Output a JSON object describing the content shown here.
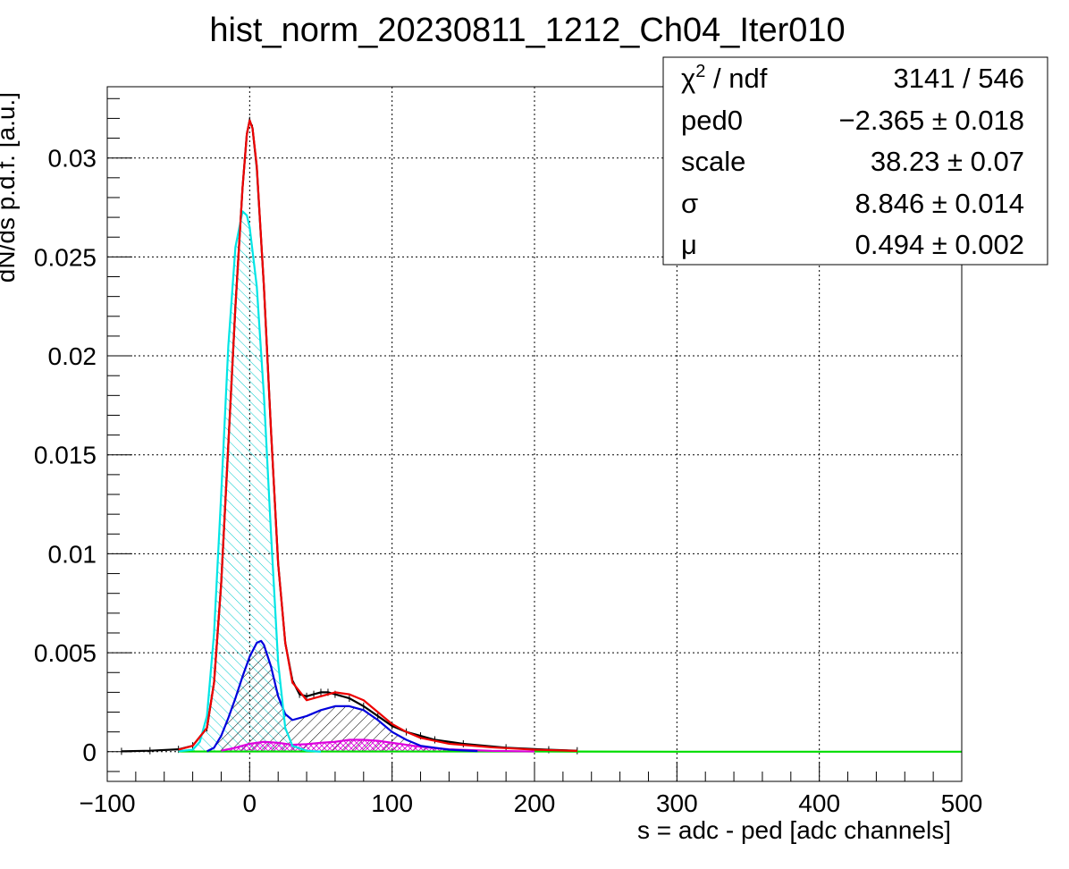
{
  "chart_data": {
    "type": "line",
    "title": "hist_norm_20230811_1212_Ch04_Iter010",
    "xlabel": "s = adc - ped [adc channels]",
    "ylabel": "dN/ds p.d.f. [a.u.]",
    "xlim": [
      -100,
      500
    ],
    "ylim": [
      -0.0015,
      0.0336
    ],
    "grid": true,
    "x_ticks": [
      {
        "value": -100,
        "label": "−100"
      },
      {
        "value": 0,
        "label": "0"
      },
      {
        "value": 100,
        "label": "100"
      },
      {
        "value": 200,
        "label": "200"
      },
      {
        "value": 300,
        "label": "300"
      },
      {
        "value": 400,
        "label": "400"
      },
      {
        "value": 500,
        "label": "500"
      }
    ],
    "y_ticks": [
      {
        "value": 0,
        "label": "0"
      },
      {
        "value": 0.005,
        "label": "0.005"
      },
      {
        "value": 0.01,
        "label": "0.01"
      },
      {
        "value": 0.015,
        "label": "0.015"
      },
      {
        "value": 0.02,
        "label": "0.02"
      },
      {
        "value": 0.025,
        "label": "0.025"
      },
      {
        "value": 0.03,
        "label": "0.03"
      }
    ],
    "stats_box": {
      "position": "top-right",
      "rows": [
        {
          "key": "chi2",
          "label_main": "χ",
          "label_sup": "2",
          "label_rest": " / ndf",
          "value": "3141 / 546"
        },
        {
          "key": "ped0",
          "label_main": "ped0",
          "value": "−2.365 ± 0.018"
        },
        {
          "key": "scale",
          "label_main": "scale",
          "value": "38.23 ± 0.07"
        },
        {
          "key": "sigma",
          "label_main": "σ",
          "value": "8.846 ± 0.014"
        },
        {
          "key": "mu",
          "label_main": "μ",
          "value": "0.494 ± 0.002"
        }
      ]
    },
    "series": [
      {
        "key": "data",
        "color": "#000000",
        "points": [
          [
            -90,
            2e-05
          ],
          [
            -70,
            5e-05
          ],
          [
            -50,
            0.00012
          ],
          [
            -40,
            0.0003
          ],
          [
            -30,
            0.0012
          ],
          [
            -25,
            0.0035
          ],
          [
            -20,
            0.0085
          ],
          [
            -15,
            0.0155
          ],
          [
            -10,
            0.0225
          ],
          [
            -5,
            0.0285
          ],
          [
            -2,
            0.0312
          ],
          [
            0,
            0.0319
          ],
          [
            2,
            0.0315
          ],
          [
            5,
            0.0295
          ],
          [
            10,
            0.0235
          ],
          [
            15,
            0.0162
          ],
          [
            20,
            0.0095
          ],
          [
            25,
            0.0055
          ],
          [
            30,
            0.0036
          ],
          [
            35,
            0.0029
          ],
          [
            40,
            0.0028
          ],
          [
            45,
            0.0029
          ],
          [
            50,
            0.003
          ],
          [
            55,
            0.003
          ],
          [
            60,
            0.0029
          ],
          [
            70,
            0.0027
          ],
          [
            80,
            0.0023
          ],
          [
            90,
            0.0018
          ],
          [
            100,
            0.0013
          ],
          [
            110,
            0.001
          ],
          [
            120,
            0.0008
          ],
          [
            130,
            0.0006
          ],
          [
            150,
            0.0004
          ],
          [
            180,
            0.0002
          ],
          [
            210,
            0.0001
          ],
          [
            230,
            5e-05
          ]
        ]
      },
      {
        "key": "total-fit",
        "color": "#ee0000",
        "points": [
          [
            -50,
            0.0001
          ],
          [
            -40,
            0.0003
          ],
          [
            -30,
            0.0012
          ],
          [
            -25,
            0.0035
          ],
          [
            -20,
            0.0085
          ],
          [
            -15,
            0.0155
          ],
          [
            -10,
            0.0225
          ],
          [
            -5,
            0.0285
          ],
          [
            -2,
            0.0312
          ],
          [
            0,
            0.0319
          ],
          [
            2,
            0.0315
          ],
          [
            5,
            0.0296
          ],
          [
            10,
            0.0235
          ],
          [
            15,
            0.0162
          ],
          [
            20,
            0.0095
          ],
          [
            25,
            0.0055
          ],
          [
            30,
            0.0035
          ],
          [
            40,
            0.0026
          ],
          [
            50,
            0.0028
          ],
          [
            60,
            0.003
          ],
          [
            70,
            0.0029
          ],
          [
            80,
            0.0026
          ],
          [
            90,
            0.002
          ],
          [
            100,
            0.0014
          ],
          [
            110,
            0.001
          ],
          [
            120,
            0.0007
          ],
          [
            140,
            0.0004
          ],
          [
            170,
            0.00022
          ],
          [
            200,
            0.0001
          ],
          [
            230,
            4e-05
          ]
        ]
      },
      {
        "key": "pedestal-component",
        "color": "#00e5e5",
        "hatched": true,
        "points": [
          [
            -50,
            2e-05
          ],
          [
            -40,
            0.0001
          ],
          [
            -35,
            0.0005
          ],
          [
            -30,
            0.0018
          ],
          [
            -25,
            0.006
          ],
          [
            -20,
            0.013
          ],
          [
            -15,
            0.0205
          ],
          [
            -10,
            0.0255
          ],
          [
            -5,
            0.0273
          ],
          [
            -2,
            0.0271
          ],
          [
            0,
            0.0265
          ],
          [
            5,
            0.0235
          ],
          [
            10,
            0.018
          ],
          [
            15,
            0.011
          ],
          [
            20,
            0.0045
          ],
          [
            25,
            0.0012
          ],
          [
            30,
            0.0003
          ],
          [
            40,
            5e-05
          ],
          [
            50,
            0
          ]
        ]
      },
      {
        "key": "one-photoelectron-component",
        "color": "#0000dd",
        "hatched": true,
        "points": [
          [
            -30,
            2e-05
          ],
          [
            -25,
            0.0002
          ],
          [
            -20,
            0.0008
          ],
          [
            -15,
            0.0017
          ],
          [
            -10,
            0.0027
          ],
          [
            -5,
            0.0038
          ],
          [
            0,
            0.0048
          ],
          [
            5,
            0.0055
          ],
          [
            8,
            0.0056
          ],
          [
            10,
            0.0054
          ],
          [
            15,
            0.0043
          ],
          [
            20,
            0.0028
          ],
          [
            25,
            0.0019
          ],
          [
            30,
            0.0016
          ],
          [
            40,
            0.0018
          ],
          [
            50,
            0.0021
          ],
          [
            60,
            0.0023
          ],
          [
            70,
            0.0023
          ],
          [
            80,
            0.0021
          ],
          [
            90,
            0.0016
          ],
          [
            100,
            0.001
          ],
          [
            110,
            0.0006
          ],
          [
            120,
            0.0003
          ],
          [
            140,
            0.0001
          ],
          [
            160,
            3e-05
          ]
        ]
      },
      {
        "key": "two-photoelectron-component",
        "color": "#dd00dd",
        "hatched": true,
        "points": [
          [
            -20,
            5e-05
          ],
          [
            -10,
            0.0002
          ],
          [
            0,
            0.0004
          ],
          [
            10,
            0.0005
          ],
          [
            20,
            0.00045
          ],
          [
            30,
            0.00035
          ],
          [
            40,
            0.00038
          ],
          [
            50,
            0.00045
          ],
          [
            60,
            0.0005
          ],
          [
            70,
            0.0006
          ],
          [
            80,
            0.0006
          ],
          [
            90,
            0.00055
          ],
          [
            100,
            0.00045
          ],
          [
            110,
            0.00035
          ],
          [
            120,
            0.00025
          ],
          [
            140,
            0.00012
          ],
          [
            170,
            4e-05
          ],
          [
            200,
            1e-05
          ]
        ]
      },
      {
        "key": "baseline-component",
        "color": "#00dd00",
        "points": [
          [
            -50,
            1e-05
          ],
          [
            0,
            1e-05
          ],
          [
            100,
            1e-05
          ],
          [
            200,
            1e-05
          ],
          [
            300,
            0
          ],
          [
            400,
            0
          ],
          [
            500,
            0
          ]
        ]
      }
    ]
  }
}
